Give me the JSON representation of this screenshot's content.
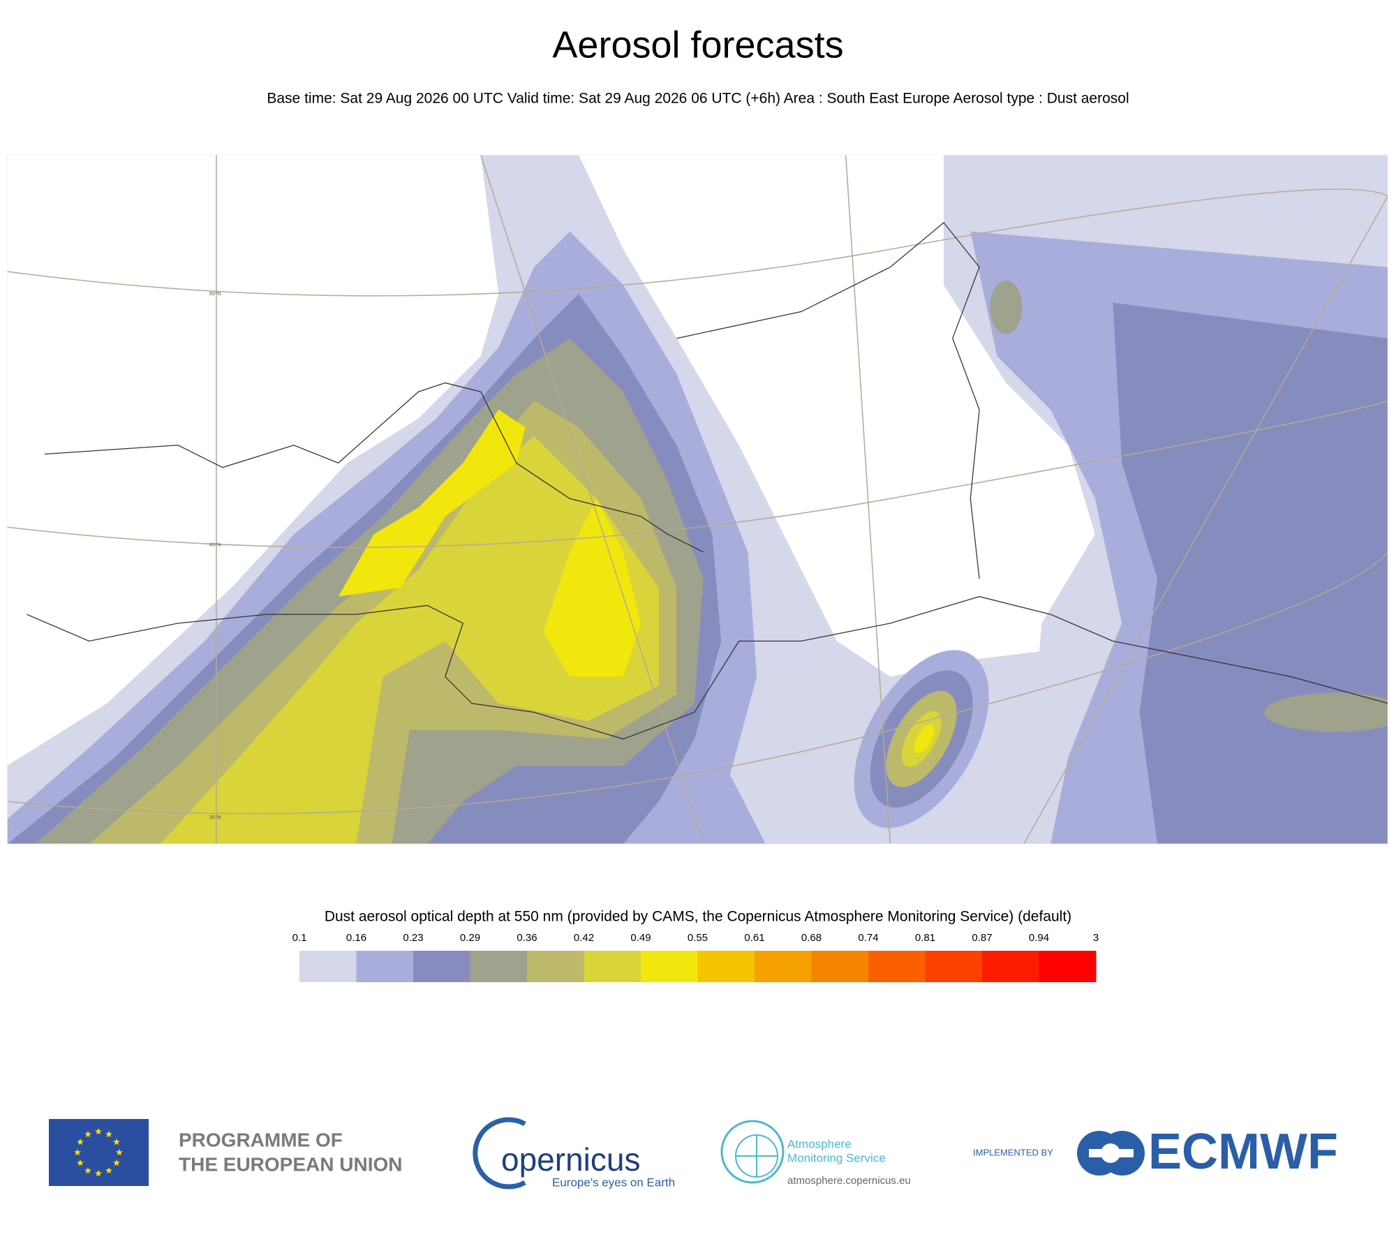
{
  "header": {
    "title": "Aerosol forecasts",
    "subtitle": "Base time: Sat 29 Aug 2026 00 UTC Valid time: Sat 29 Aug 2026 06 UTC (+6h) Area : South East Europe Aerosol type : Dust aerosol"
  },
  "map": {
    "lat_labels": [
      "50°N",
      "40°N",
      "30°N"
    ]
  },
  "legend": {
    "title": "Dust aerosol optical depth at 550 nm (provided by CAMS, the Copernicus Atmosphere Monitoring Service) (default)",
    "ticks": [
      0.1,
      0.16,
      0.23,
      0.29,
      0.36,
      0.42,
      0.49,
      0.55,
      0.61,
      0.68,
      0.74,
      0.81,
      0.87,
      0.94,
      3
    ],
    "colors": [
      "#d5d7ea",
      "#a9addb",
      "#878cbf",
      "#9fa28c",
      "#bdb96b",
      "#d8d43a",
      "#f2e70c",
      "#f5c400",
      "#f5a200",
      "#f58400",
      "#fa6000",
      "#fc4000",
      "#fd1c00",
      "#ff0000"
    ]
  },
  "footer": {
    "eu": [
      "PROGRAMME OF",
      "THE EUROPEAN UNION"
    ],
    "copernicus": {
      "name": "opernicus",
      "tagline": "Europe's eyes on Earth"
    },
    "cams": {
      "lines": [
        "Atmosphere",
        "Monitoring Service"
      ],
      "url": "atmosphere.copernicus.eu"
    },
    "implemented_by": "IMPLEMENTED BY",
    "ecmwf": "ECMWF"
  }
}
